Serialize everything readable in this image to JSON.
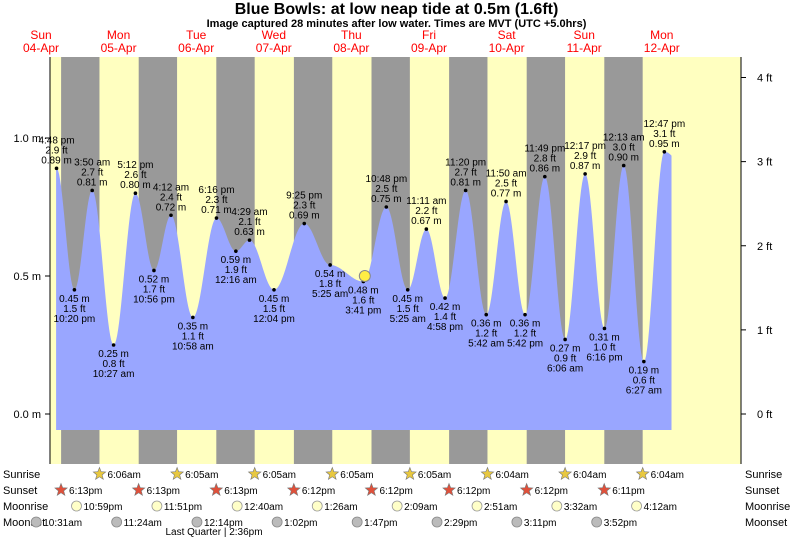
{
  "title": "Blue Bowls: at low  neap tide at 0.5m (1.6ft)",
  "subtitle": "Image captured 28 minutes after low water. Times are MVT (UTC +5.0hrs)",
  "colors": {
    "day": "#ffffc0",
    "night": "#999999",
    "tide": "#99a6ff",
    "day_label": "#ff0000",
    "current_marker": "#ffee44"
  },
  "days": [
    {
      "dow": "Sun",
      "date": "04-Apr"
    },
    {
      "dow": "Mon",
      "date": "05-Apr"
    },
    {
      "dow": "Tue",
      "date": "06-Apr"
    },
    {
      "dow": "Wed",
      "date": "07-Apr"
    },
    {
      "dow": "Thu",
      "date": "08-Apr"
    },
    {
      "dow": "Fri",
      "date": "09-Apr"
    },
    {
      "dow": "Sat",
      "date": "10-Apr"
    },
    {
      "dow": "Sun",
      "date": "11-Apr"
    },
    {
      "dow": "Mon",
      "date": "12-Apr"
    }
  ],
  "chart_data": {
    "type": "area",
    "title": "Blue Bowls: at low  neap tide at 0.5m (1.6ft)",
    "ylim_m": [
      -0.12,
      1.35
    ],
    "left_axis": {
      "unit": "m",
      "ticks": [
        "0.0 m",
        "0.5 m",
        "1.0 m"
      ],
      "values": [
        0.0,
        0.5,
        1.0
      ]
    },
    "right_axis": {
      "unit": "ft",
      "ticks": [
        "0 ft",
        "1 ft",
        "2 ft",
        "3 ft",
        "4 ft"
      ],
      "values": [
        0,
        1,
        2,
        3,
        4
      ]
    },
    "data_start": "2021-04-04 16:40",
    "data_end": "2021-04-12 15:00",
    "extremes": [
      {
        "type": "high",
        "datetime": "2021-04-04 16:48",
        "time": "4:48 pm",
        "ft": "2.9 ft",
        "m": "0.89 m",
        "value": 0.89
      },
      {
        "type": "low",
        "datetime": "2021-04-04 22:20",
        "time": "10:20 pm",
        "ft": "1.5 ft",
        "m": "0.45 m",
        "value": 0.45
      },
      {
        "type": "high",
        "datetime": "2021-04-05 03:50",
        "time": "3:50 am",
        "ft": "2.7 ft",
        "m": "0.81 m",
        "value": 0.81
      },
      {
        "type": "low",
        "datetime": "2021-04-05 10:27",
        "time": "10:27 am",
        "ft": "0.8 ft",
        "m": "0.25 m",
        "value": 0.25
      },
      {
        "type": "high",
        "datetime": "2021-04-05 17:12",
        "time": "5:12 pm",
        "ft": "2.6 ft",
        "m": "0.80 m",
        "value": 0.8
      },
      {
        "type": "low",
        "datetime": "2021-04-05 22:56",
        "time": "10:56 pm",
        "ft": "1.7 ft",
        "m": "0.52 m",
        "value": 0.52
      },
      {
        "type": "high",
        "datetime": "2021-04-06 04:12",
        "time": "4:12 am",
        "ft": "2.4 ft",
        "m": "0.72 m",
        "value": 0.72
      },
      {
        "type": "low",
        "datetime": "2021-04-06 10:58",
        "time": "10:58 am",
        "ft": "1.1 ft",
        "m": "0.35 m",
        "value": 0.35
      },
      {
        "type": "high",
        "datetime": "2021-04-06 18:16",
        "time": "6:16 pm",
        "ft": "2.3 ft",
        "m": "0.71 m",
        "value": 0.71
      },
      {
        "type": "low",
        "datetime": "2021-04-07 00:16",
        "time": "12:16 am",
        "ft": "1.9 ft",
        "m": "0.59 m",
        "value": 0.59
      },
      {
        "type": "high",
        "datetime": "2021-04-07 04:29",
        "time": "4:29 am",
        "ft": "2.1 ft",
        "m": "0.63 m",
        "value": 0.63
      },
      {
        "type": "low",
        "datetime": "2021-04-07 12:04",
        "time": "12:04 pm",
        "ft": "1.5 ft",
        "m": "0.45 m",
        "value": 0.45
      },
      {
        "type": "high",
        "datetime": "2021-04-07 21:25",
        "time": "9:25 pm",
        "ft": "2.3 ft",
        "m": "0.69 m",
        "value": 0.69
      },
      {
        "type": "low",
        "datetime": "2021-04-08 05:25",
        "time": "5:25 am",
        "ft": "1.8 ft",
        "m": "0.54 m",
        "value": 0.54
      },
      {
        "type": "low",
        "datetime": "2021-04-08 15:41",
        "time": "3:41 pm",
        "ft": "1.6 ft",
        "m": "0.48 m",
        "value": 0.48
      },
      {
        "type": "high",
        "datetime": "2021-04-08 22:48",
        "time": "10:48 pm",
        "ft": "2.5 ft",
        "m": "0.75 m",
        "value": 0.75
      },
      {
        "type": "low",
        "datetime": "2021-04-09 05:25",
        "time": "5:25 am",
        "ft": "1.5 ft",
        "m": "0.45 m",
        "value": 0.45
      },
      {
        "type": "high",
        "datetime": "2021-04-09 11:11",
        "time": "11:11 am",
        "ft": "2.2 ft",
        "m": "0.67 m",
        "value": 0.67
      },
      {
        "type": "low",
        "datetime": "2021-04-09 16:58",
        "time": "4:58 pm",
        "ft": "1.4 ft",
        "m": "0.42 m",
        "value": 0.42
      },
      {
        "type": "high",
        "datetime": "2021-04-09 23:20",
        "time": "11:20 pm",
        "ft": "2.7 ft",
        "m": "0.81 m",
        "value": 0.81
      },
      {
        "type": "low",
        "datetime": "2021-04-10 05:42",
        "time": "5:42 am",
        "ft": "1.2 ft",
        "m": "0.36 m",
        "value": 0.36
      },
      {
        "type": "high",
        "datetime": "2021-04-10 11:50",
        "time": "11:50 am",
        "ft": "2.5 ft",
        "m": "0.77 m",
        "value": 0.77
      },
      {
        "type": "low",
        "datetime": "2021-04-10 17:42",
        "time": "5:42 pm",
        "ft": "1.2 ft",
        "m": "0.36 m",
        "value": 0.36
      },
      {
        "type": "high",
        "datetime": "2021-04-10 23:49",
        "time": "11:49 pm",
        "ft": "2.8 ft",
        "m": "0.86 m",
        "value": 0.86
      },
      {
        "type": "low",
        "datetime": "2021-04-11 06:06",
        "time": "6:06 am",
        "ft": "0.9 ft",
        "m": "0.27 m",
        "value": 0.27
      },
      {
        "type": "high",
        "datetime": "2021-04-11 12:17",
        "time": "12:17 pm",
        "ft": "2.9 ft",
        "m": "0.87 m",
        "value": 0.87
      },
      {
        "type": "low",
        "datetime": "2021-04-11 18:16",
        "time": "6:16 pm",
        "ft": "1.0 ft",
        "m": "0.31 m",
        "value": 0.31
      },
      {
        "type": "high",
        "datetime": "2021-04-12 00:13",
        "time": "12:13 am",
        "ft": "3.0 ft",
        "m": "0.90 m",
        "value": 0.9
      },
      {
        "type": "low",
        "datetime": "2021-04-12 06:27",
        "time": "6:27 am",
        "ft": "0.6 ft",
        "m": "0.19 m",
        "value": 0.19
      },
      {
        "type": "high",
        "datetime": "2021-04-12 12:47",
        "time": "12:47 pm",
        "ft": "3.1 ft",
        "m": "0.95 m",
        "value": 0.95
      }
    ],
    "current": {
      "datetime": "2021-04-08 16:09",
      "value": 0.5
    }
  },
  "sun_moon": {
    "row_labels": [
      "Sunrise",
      "Sunset",
      "Moonrise",
      "Moonset"
    ],
    "sunrise": [
      {
        "date": "2021-04-05",
        "time": "6:06am"
      },
      {
        "date": "2021-04-06",
        "time": "6:05am"
      },
      {
        "date": "2021-04-07",
        "time": "6:05am"
      },
      {
        "date": "2021-04-08",
        "time": "6:05am"
      },
      {
        "date": "2021-04-09",
        "time": "6:05am"
      },
      {
        "date": "2021-04-10",
        "time": "6:04am"
      },
      {
        "date": "2021-04-11",
        "time": "6:04am"
      },
      {
        "date": "2021-04-12",
        "time": "6:04am"
      }
    ],
    "sunset": [
      {
        "date": "2021-04-04",
        "time": "6:13pm"
      },
      {
        "date": "2021-04-05",
        "time": "6:13pm"
      },
      {
        "date": "2021-04-06",
        "time": "6:13pm"
      },
      {
        "date": "2021-04-07",
        "time": "6:12pm"
      },
      {
        "date": "2021-04-08",
        "time": "6:12pm"
      },
      {
        "date": "2021-04-09",
        "time": "6:12pm"
      },
      {
        "date": "2021-04-10",
        "time": "6:12pm"
      },
      {
        "date": "2021-04-11",
        "time": "6:11pm"
      }
    ],
    "moonrise": [
      {
        "date": "2021-04-04",
        "time": "10:59pm"
      },
      {
        "date": "2021-04-05",
        "time": "11:51pm"
      },
      {
        "date": "2021-04-07",
        "time": "12:40am"
      },
      {
        "date": "2021-04-08",
        "time": "1:26am"
      },
      {
        "date": "2021-04-09",
        "time": "2:09am"
      },
      {
        "date": "2021-04-10",
        "time": "2:51am"
      },
      {
        "date": "2021-04-11",
        "time": "3:32am"
      },
      {
        "date": "2021-04-12",
        "time": "4:12am"
      }
    ],
    "moonset": [
      {
        "date": "2021-04-04",
        "time": "10:31am"
      },
      {
        "date": "2021-04-05",
        "time": "11:24am"
      },
      {
        "date": "2021-04-06",
        "time": "12:14pm"
      },
      {
        "date": "2021-04-07",
        "time": "1:02pm"
      },
      {
        "date": "2021-04-08",
        "time": "1:47pm"
      },
      {
        "date": "2021-04-09",
        "time": "2:29pm"
      },
      {
        "date": "2021-04-10",
        "time": "3:11pm"
      },
      {
        "date": "2021-04-11",
        "time": "3:52pm"
      }
    ],
    "moon_phase": {
      "label": "Last Quarter | 2:36pm"
    }
  }
}
